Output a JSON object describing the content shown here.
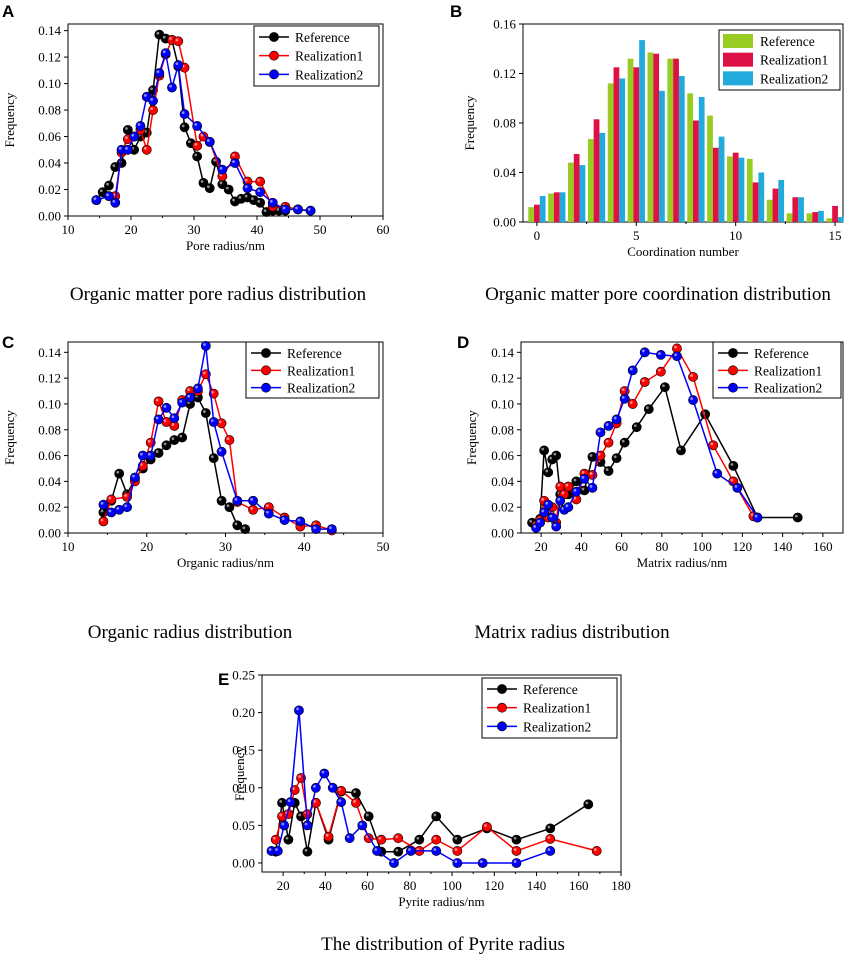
{
  "colors": {
    "reference": "#000000",
    "realization1": "#ff0000",
    "realization2": "#0000ff",
    "bar_reference": "#99cc22",
    "bar_realization1": "#dd1144",
    "bar_realization2": "#22aadd"
  },
  "chart_data": [
    {
      "id": "A",
      "letter": "A",
      "type": "line",
      "caption": "Organic matter pore radius distribution",
      "xlabel": "Pore radius/nm",
      "ylabel": "Frequency",
      "xlim": [
        10,
        60
      ],
      "ylim": [
        0,
        0.145
      ],
      "xticks": [
        10,
        20,
        30,
        40,
        50,
        60
      ],
      "yticks": [
        0.0,
        0.02,
        0.04,
        0.06,
        0.08,
        0.1,
        0.12,
        0.14
      ],
      "ydec": 2,
      "series": [
        {
          "name": "Reference",
          "x": [
            14.5,
            15.5,
            16.5,
            17.5,
            18.5,
            19.5,
            20.5,
            21.5,
            22.5,
            23.5,
            24.5,
            25.5,
            26.5,
            27.5,
            28.5,
            29.5,
            30.5,
            31.5,
            32.5,
            33.5,
            34.5,
            35.5,
            36.5,
            37.5,
            38.5,
            39.5,
            40.5,
            41.5,
            42.5,
            43.5,
            44.5
          ],
          "y": [
            0.012,
            0.018,
            0.023,
            0.037,
            0.04,
            0.065,
            0.05,
            0.06,
            0.063,
            0.095,
            0.137,
            0.134,
            0.133,
            0.113,
            0.067,
            0.055,
            0.045,
            0.025,
            0.021,
            0.041,
            0.024,
            0.02,
            0.011,
            0.013,
            0.014,
            0.012,
            0.01,
            0.003,
            0.004,
            0.004,
            0.004
          ]
        },
        {
          "name": "Realization1",
          "x": [
            14.5,
            16.5,
            17.5,
            18.5,
            19.5,
            20.5,
            21.5,
            22.5,
            23.5,
            24.5,
            25.5,
            26.5,
            27.5,
            28.5,
            30.5,
            31.5,
            32.5,
            34.5,
            36.5,
            38.5,
            40.5,
            42.5,
            44.5,
            46.5,
            48.5
          ],
          "y": [
            0.012,
            0.015,
            0.015,
            0.048,
            0.058,
            0.06,
            0.065,
            0.05,
            0.08,
            0.106,
            0.122,
            0.133,
            0.132,
            0.112,
            0.053,
            0.06,
            0.056,
            0.03,
            0.045,
            0.026,
            0.026,
            0.007,
            0.007,
            0.005,
            0.004
          ]
        },
        {
          "name": "Realization2",
          "x": [
            14.5,
            16.5,
            17.5,
            18.5,
            19.5,
            20.5,
            21.5,
            22.5,
            23.5,
            24.5,
            25.5,
            26.5,
            27.5,
            28.5,
            30.5,
            32.5,
            34.5,
            36.5,
            38.5,
            40.5,
            42.5,
            44.5,
            46.5,
            48.5
          ],
          "y": [
            0.012,
            0.015,
            0.01,
            0.05,
            0.05,
            0.06,
            0.068,
            0.09,
            0.087,
            0.108,
            0.123,
            0.097,
            0.114,
            0.077,
            0.068,
            0.056,
            0.035,
            0.04,
            0.021,
            0.018,
            0.01,
            0.005,
            0.005,
            0.004
          ]
        }
      ]
    },
    {
      "id": "B",
      "letter": "B",
      "type": "bar",
      "caption": "Organic matter pore coordination distribution",
      "xlabel": "Coordination number",
      "ylabel": "Frequency",
      "xlim": [
        -0.7,
        15.4
      ],
      "ylim": [
        0,
        0.16
      ],
      "xticks": [
        0,
        5,
        10,
        15
      ],
      "yticks": [
        0.0,
        0.04,
        0.08,
        0.12,
        0.16
      ],
      "ydec": 2,
      "categories": [
        0,
        1,
        2,
        3,
        4,
        5,
        6,
        7,
        8,
        9,
        10,
        11,
        12,
        13,
        14,
        15
      ],
      "series": [
        {
          "name": "Reference",
          "values": [
            0.012,
            0.023,
            0.048,
            0.067,
            0.112,
            0.132,
            0.137,
            0.132,
            0.104,
            0.086,
            0.053,
            0.051,
            0.018,
            0.007,
            0.007,
            0.003
          ]
        },
        {
          "name": "Realization1",
          "values": [
            0.014,
            0.024,
            0.055,
            0.083,
            0.125,
            0.125,
            0.136,
            0.132,
            0.082,
            0.06,
            0.056,
            0.032,
            0.027,
            0.02,
            0.008,
            0.013
          ]
        },
        {
          "name": "Realization2",
          "values": [
            0.021,
            0.024,
            0.046,
            0.072,
            0.116,
            0.147,
            0.106,
            0.118,
            0.101,
            0.069,
            0.052,
            0.04,
            0.034,
            0.02,
            0.009,
            0.004
          ]
        }
      ]
    },
    {
      "id": "C",
      "letter": "C",
      "type": "line",
      "caption": "Organic radius distribution",
      "xlabel": "Organic radius/nm",
      "ylabel": "Frequency",
      "xlim": [
        10,
        50
      ],
      "ylim": [
        0,
        0.148
      ],
      "xticks": [
        10,
        20,
        30,
        40,
        50
      ],
      "yticks": [
        0.0,
        0.02,
        0.04,
        0.06,
        0.08,
        0.1,
        0.12,
        0.14
      ],
      "ydec": 2,
      "series": [
        {
          "name": "Reference",
          "x": [
            14.5,
            15.5,
            16.5,
            17.5,
            18.5,
            19.5,
            20.5,
            21.5,
            22.5,
            23.5,
            24.5,
            25.5,
            26.5,
            27.5,
            28.5,
            29.5,
            30.5,
            31.5,
            32.5
          ],
          "y": [
            0.016,
            0.025,
            0.046,
            0.03,
            0.042,
            0.05,
            0.057,
            0.062,
            0.068,
            0.072,
            0.074,
            0.1,
            0.105,
            0.093,
            0.058,
            0.025,
            0.02,
            0.006,
            0.003
          ]
        },
        {
          "name": "Realization1",
          "x": [
            14.5,
            15.5,
            17.5,
            18.5,
            19.5,
            20.5,
            21.5,
            22.5,
            23.5,
            24.5,
            25.5,
            26.5,
            27.5,
            28.5,
            29.5,
            30.5,
            31.5,
            33.5,
            35.5,
            37.5,
            39.5,
            41.5,
            43.5
          ],
          "y": [
            0.009,
            0.026,
            0.028,
            0.04,
            0.052,
            0.07,
            0.102,
            0.086,
            0.083,
            0.103,
            0.11,
            0.11,
            0.123,
            0.108,
            0.085,
            0.072,
            0.024,
            0.018,
            0.02,
            0.012,
            0.005,
            0.006,
            0.002
          ]
        },
        {
          "name": "Realization2",
          "x": [
            14.5,
            15.5,
            16.5,
            17.5,
            18.5,
            19.5,
            20.5,
            21.5,
            22.5,
            23.5,
            24.5,
            25.5,
            26.5,
            27.5,
            28.5,
            29.5,
            31.5,
            33.5,
            35.5,
            37.5,
            39.5,
            41.5,
            43.5
          ],
          "y": [
            0.022,
            0.016,
            0.018,
            0.02,
            0.043,
            0.06,
            0.06,
            0.088,
            0.097,
            0.089,
            0.101,
            0.105,
            0.112,
            0.145,
            0.086,
            0.063,
            0.025,
            0.025,
            0.015,
            0.01,
            0.009,
            0.003,
            0.003
          ]
        }
      ]
    },
    {
      "id": "D",
      "letter": "D",
      "type": "line",
      "caption": "Matrix radius distribution",
      "xlabel": "Matrix radius/nm",
      "ylabel": "Frequency",
      "xlim": [
        10,
        170
      ],
      "ylim": [
        0,
        0.148
      ],
      "xticks": [
        20,
        40,
        60,
        80,
        100,
        120,
        140,
        160
      ],
      "yticks": [
        0.0,
        0.02,
        0.04,
        0.06,
        0.08,
        0.1,
        0.12,
        0.14
      ],
      "ydec": 2,
      "series": [
        {
          "name": "Reference",
          "x": [
            15.5,
            17.5,
            19.5,
            21.5,
            23.5,
            25.5,
            27.5,
            29.5,
            33.5,
            37.5,
            41.5,
            45.5,
            49.5,
            53.5,
            57.5,
            61.5,
            67.5,
            73.5,
            81.5,
            89.5,
            101.5,
            115.5,
            127.5,
            147.5
          ],
          "y": [
            0.008,
            0.006,
            0.011,
            0.064,
            0.047,
            0.057,
            0.06,
            0.03,
            0.03,
            0.04,
            0.033,
            0.059,
            0.055,
            0.048,
            0.058,
            0.07,
            0.082,
            0.096,
            0.113,
            0.064,
            0.092,
            0.052,
            0.012,
            0.012
          ]
        },
        {
          "name": "Realization1",
          "x": [
            17.5,
            19.5,
            21.5,
            23.5,
            25.5,
            27.5,
            29.5,
            31.5,
            33.5,
            37.5,
            41.5,
            45.5,
            49.5,
            53.5,
            57.5,
            61.5,
            65.5,
            71.5,
            79.5,
            87.5,
            95.5,
            105.5,
            115.5,
            125.5
          ],
          "y": [
            0.006,
            0.01,
            0.025,
            0.012,
            0.02,
            0.008,
            0.036,
            0.03,
            0.036,
            0.026,
            0.046,
            0.045,
            0.06,
            0.07,
            0.085,
            0.11,
            0.1,
            0.117,
            0.125,
            0.143,
            0.121,
            0.068,
            0.04,
            0.013
          ]
        },
        {
          "name": "Realization2",
          "x": [
            17.5,
            19.5,
            21.5,
            23.5,
            25.5,
            27.5,
            29.5,
            31.5,
            33.5,
            37.5,
            41.5,
            45.5,
            49.5,
            53.5,
            57.5,
            61.5,
            65.5,
            71.5,
            79.5,
            87.5,
            95.5,
            107.5,
            117.5,
            127.5
          ],
          "y": [
            0.004,
            0.008,
            0.016,
            0.022,
            0.012,
            0.005,
            0.025,
            0.018,
            0.02,
            0.032,
            0.042,
            0.035,
            0.078,
            0.083,
            0.088,
            0.104,
            0.126,
            0.14,
            0.138,
            0.137,
            0.103,
            0.046,
            0.035,
            0.012
          ]
        }
      ]
    },
    {
      "id": "E",
      "letter": "E",
      "type": "line",
      "caption": "The distribution of Pyrite radius",
      "xlabel": "Pyrite radius/nm",
      "ylabel": "Frequency",
      "xlim": [
        10,
        180
      ],
      "ylim": [
        -0.012,
        0.25
      ],
      "xticks": [
        20,
        40,
        60,
        80,
        100,
        120,
        140,
        160,
        180
      ],
      "yticks": [
        0.0,
        0.05,
        0.1,
        0.15,
        0.2,
        0.25
      ],
      "ydec": 2,
      "series": [
        {
          "name": "Reference",
          "x": [
            16.5,
            19.5,
            22.5,
            25.5,
            28.5,
            31.5,
            35.5,
            41.5,
            47.5,
            54.5,
            60.5,
            66.5,
            74.5,
            84.5,
            92.5,
            102.5,
            116.5,
            130.5,
            146.5,
            164.5
          ],
          "y": [
            0.015,
            0.08,
            0.031,
            0.08,
            0.062,
            0.015,
            0.08,
            0.031,
            0.095,
            0.093,
            0.062,
            0.015,
            0.015,
            0.031,
            0.062,
            0.031,
            0.046,
            0.031,
            0.046,
            0.078
          ]
        },
        {
          "name": "Realization1",
          "x": [
            16.5,
            19.5,
            22.5,
            25.5,
            28.5,
            31.5,
            35.5,
            41.5,
            47.5,
            54.5,
            60.5,
            66.5,
            74.5,
            84.5,
            92.5,
            102.5,
            116.5,
            130.5,
            146.5,
            168.5
          ],
          "y": [
            0.031,
            0.062,
            0.065,
            0.097,
            0.113,
            0.065,
            0.08,
            0.035,
            0.096,
            0.08,
            0.033,
            0.031,
            0.033,
            0.016,
            0.031,
            0.016,
            0.048,
            0.016,
            0.032,
            0.016
          ]
        },
        {
          "name": "Realization2",
          "x": [
            14.5,
            17.5,
            20.5,
            23.5,
            27.5,
            31.5,
            35.5,
            39.5,
            43.5,
            47.5,
            51.5,
            57.5,
            64.5,
            72.5,
            80.5,
            92.5,
            102.5,
            114.5,
            130.5,
            146.5
          ],
          "y": [
            0.016,
            0.016,
            0.05,
            0.081,
            0.203,
            0.05,
            0.1,
            0.119,
            0.1,
            0.081,
            0.033,
            0.05,
            0.016,
            0.0,
            0.016,
            0.016,
            0.0,
            0.0,
            0.0,
            0.016
          ]
        }
      ]
    }
  ]
}
